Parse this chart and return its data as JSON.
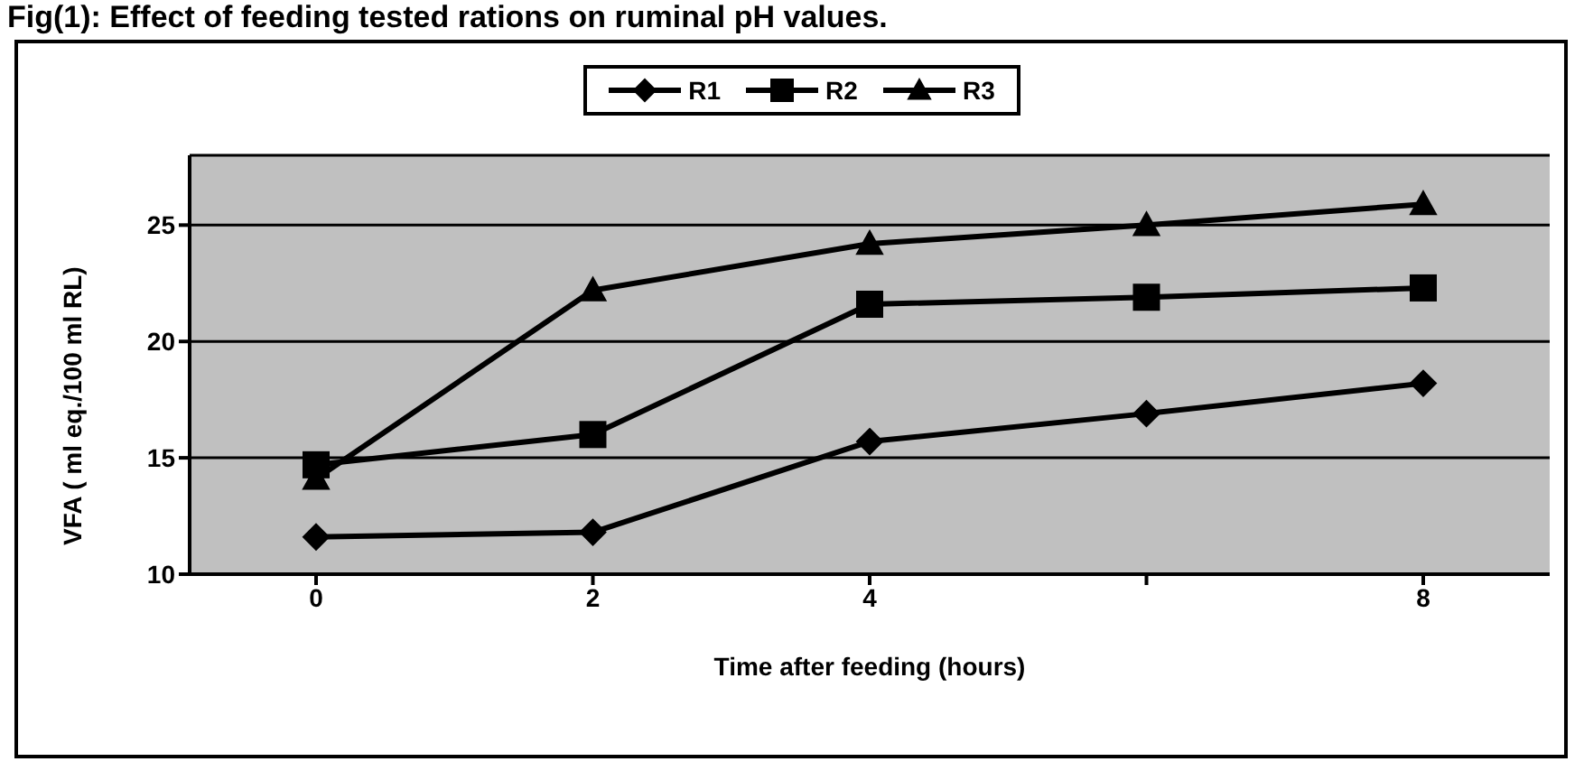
{
  "chart_data": {
    "type": "line",
    "title": "Fig(1): Effect of feeding tested rations on ruminal pH values.",
    "xlabel": "Time after feeding (hours)",
    "ylabel": "VFA ( ml eq./100 ml RL)",
    "categories": [
      "0",
      "2",
      "4",
      null,
      "8"
    ],
    "series": [
      {
        "name": "R1",
        "color": "#000000",
        "marker": "diamond",
        "values": [
          11.6,
          11.8,
          15.7,
          16.9,
          18.2
        ]
      },
      {
        "name": "R2",
        "color": "#000000",
        "marker": "square",
        "values": [
          14.7,
          16.0,
          21.6,
          21.9,
          22.3
        ]
      },
      {
        "name": "R3",
        "color": "#000000",
        "marker": "triangle",
        "values": [
          14.1,
          22.2,
          24.2,
          25.0,
          25.9
        ]
      }
    ],
    "ylim": [
      10,
      28
    ],
    "yticks": [
      10,
      15,
      20,
      25
    ],
    "grid": "y",
    "legend": "top",
    "line_style": "solid"
  }
}
